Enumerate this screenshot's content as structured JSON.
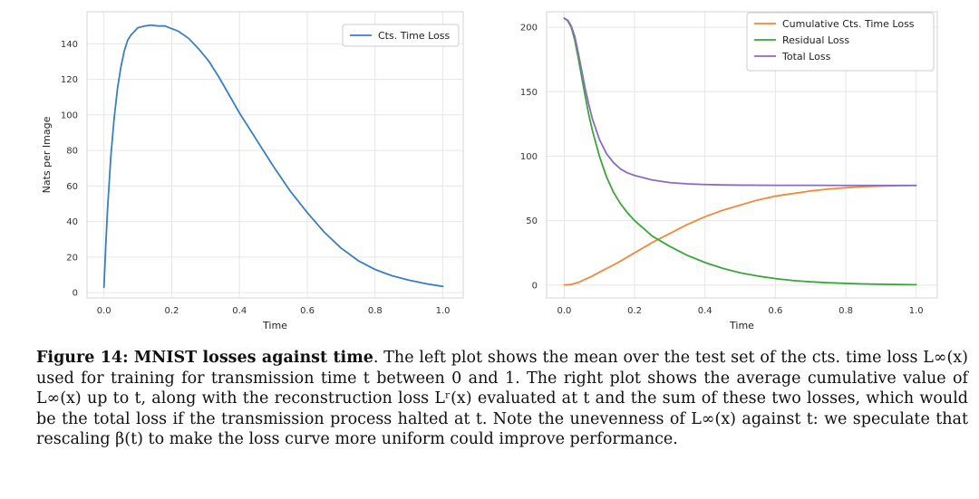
{
  "chart_data": [
    {
      "type": "line",
      "title": "",
      "xlabel": "Time",
      "ylabel": "Nats per Image",
      "xlim": [
        -0.05,
        1.06
      ],
      "ylim": [
        -3,
        158
      ],
      "xticks": [
        0.0,
        0.2,
        0.4,
        0.6,
        0.8,
        1.0
      ],
      "xtick_labels": [
        "0.0",
        "0.2",
        "0.4",
        "0.6",
        "0.8",
        "1.0"
      ],
      "yticks": [
        0,
        20,
        40,
        60,
        80,
        100,
        120,
        140
      ],
      "ytick_labels": [
        "0",
        "20",
        "40",
        "60",
        "80",
        "100",
        "120",
        "140"
      ],
      "grid": true,
      "legend_position": "top-right",
      "series": [
        {
          "name": "Cts. Time Loss",
          "color": "#3a7fbf",
          "x": [
            0.0,
            0.005,
            0.01,
            0.02,
            0.03,
            0.04,
            0.05,
            0.06,
            0.07,
            0.08,
            0.09,
            0.1,
            0.12,
            0.14,
            0.16,
            0.18,
            0.2,
            0.22,
            0.25,
            0.28,
            0.31,
            0.34,
            0.37,
            0.4,
            0.45,
            0.5,
            0.55,
            0.6,
            0.65,
            0.7,
            0.75,
            0.8,
            0.85,
            0.9,
            0.95,
            1.0
          ],
          "values": [
            3,
            25,
            45,
            76,
            98,
            115,
            127,
            136,
            142,
            145,
            147,
            149,
            150,
            150.5,
            150,
            150,
            148.5,
            147,
            143,
            137,
            130,
            121,
            111,
            101,
            86,
            71,
            57,
            45,
            34,
            25,
            18,
            13,
            9.5,
            7,
            5,
            3.5
          ]
        }
      ]
    },
    {
      "type": "line",
      "title": "",
      "xlabel": "Time",
      "ylabel": "",
      "xlim": [
        -0.05,
        1.06
      ],
      "ylim": [
        -10,
        212
      ],
      "xticks": [
        0.0,
        0.2,
        0.4,
        0.6,
        0.8,
        1.0
      ],
      "xtick_labels": [
        "0.0",
        "0.2",
        "0.4",
        "0.6",
        "0.8",
        "1.0"
      ],
      "yticks": [
        0,
        50,
        100,
        150,
        200
      ],
      "ytick_labels": [
        "0",
        "50",
        "100",
        "150",
        "200"
      ],
      "grid": true,
      "legend_position": "top-right",
      "series": [
        {
          "name": "Cumulative Cts. Time Loss",
          "color": "#ee8a3a",
          "x": [
            0.0,
            0.02,
            0.04,
            0.06,
            0.08,
            0.1,
            0.15,
            0.2,
            0.25,
            0.3,
            0.35,
            0.4,
            0.45,
            0.5,
            0.55,
            0.6,
            0.65,
            0.7,
            0.75,
            0.8,
            0.85,
            0.9,
            0.95,
            1.0
          ],
          "values": [
            0,
            0.5,
            2,
            4.5,
            7,
            10,
            17,
            25,
            33,
            40,
            47,
            53,
            58,
            62,
            66,
            69,
            71,
            73,
            74.5,
            75.5,
            76.3,
            76.8,
            77.1,
            77.3
          ]
        },
        {
          "name": "Residual Loss",
          "color": "#3aa63a",
          "x": [
            0.0,
            0.01,
            0.02,
            0.03,
            0.04,
            0.05,
            0.06,
            0.07,
            0.08,
            0.1,
            0.12,
            0.14,
            0.16,
            0.18,
            0.2,
            0.25,
            0.3,
            0.35,
            0.4,
            0.45,
            0.5,
            0.55,
            0.6,
            0.65,
            0.7,
            0.75,
            0.8,
            0.85,
            0.9,
            0.95,
            1.0
          ],
          "values": [
            207,
            205,
            200,
            190,
            176,
            161,
            146,
            132,
            120,
            100,
            84,
            72,
            63,
            56,
            50,
            38,
            30,
            23,
            17.5,
            13,
            9.5,
            7,
            5,
            3.5,
            2.5,
            1.8,
            1.3,
            0.9,
            0.6,
            0.4,
            0.3
          ]
        },
        {
          "name": "Total Loss",
          "color": "#8a6cc1",
          "x": [
            0.0,
            0.01,
            0.02,
            0.03,
            0.04,
            0.05,
            0.06,
            0.07,
            0.08,
            0.1,
            0.12,
            0.14,
            0.16,
            0.18,
            0.2,
            0.25,
            0.3,
            0.35,
            0.4,
            0.45,
            0.5,
            0.6,
            0.7,
            0.8,
            0.9,
            1.0
          ],
          "values": [
            207,
            205.5,
            201,
            193,
            180,
            166,
            152,
            140,
            129,
            113,
            102,
            95,
            90,
            87,
            85,
            81.5,
            79.5,
            78.5,
            78,
            77.7,
            77.5,
            77.4,
            77.4,
            77.3,
            77.3,
            77.3
          ]
        }
      ]
    }
  ],
  "caption": {
    "label": "Figure 14: MNIST losses against time",
    "text": ". The left plot shows the mean over the test set of the cts. time loss L∞(x) used for training for transmission time t between 0 and 1. The right plot shows the average cumulative value of L∞(x) up to t, along with the reconstruction loss Lʳ(x) evaluated at t and the sum of these two losses, which would be the total loss if the transmission process halted at t. Note the unevenness of L∞(x) against t: we speculate that rescaling β(t) to make the loss curve more uniform could improve performance."
  }
}
